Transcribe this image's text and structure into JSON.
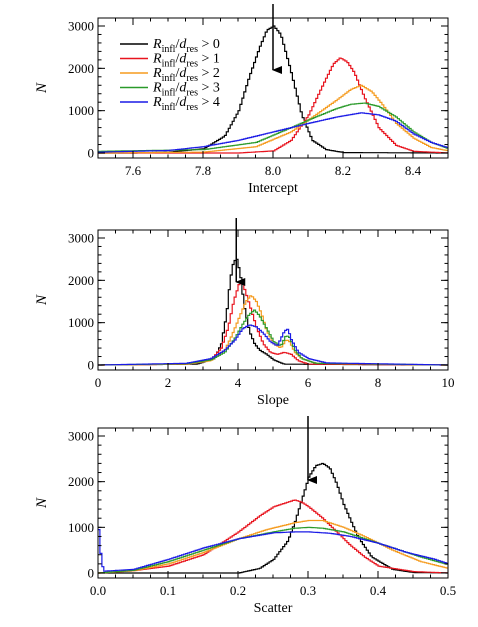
{
  "chart_data": [
    {
      "type": "line",
      "style": "histogram-step",
      "xlabel": "Intercept",
      "ylabel": "N",
      "xlim": [
        7.5,
        8.5
      ],
      "ylim": [
        0,
        3000
      ],
      "xticks": [
        "7.6",
        "7.8",
        "8.0",
        "8.2",
        "8.4"
      ],
      "yticks": [
        "0",
        "1000",
        "2000",
        "3000"
      ],
      "arrow_x": 8.0,
      "legend_position": "top-left",
      "legend": [
        {
          "R": "R",
          "infl": "infl",
          "d": "d",
          "res": "res",
          "rel": "> 0",
          "color": "#000000"
        },
        {
          "R": "R",
          "infl": "infl",
          "d": "d",
          "res": "res",
          "rel": "> 1",
          "color": "#e8141e"
        },
        {
          "R": "R",
          "infl": "infl",
          "d": "d",
          "res": "res",
          "rel": "> 2",
          "color": "#f59b1e"
        },
        {
          "R": "R",
          "infl": "infl",
          "d": "d",
          "res": "res",
          "rel": "> 3",
          "color": "#2a9a2a"
        },
        {
          "R": "R",
          "infl": "infl",
          "d": "d",
          "res": "res",
          "rel": "> 4",
          "color": "#1a1ae6"
        }
      ],
      "series": [
        {
          "color": "#000000",
          "x": [
            7.5,
            7.6,
            7.7,
            7.8,
            7.86,
            7.9,
            7.93,
            7.96,
            7.98,
            8.0,
            8.02,
            8.05,
            8.08,
            8.11,
            8.15,
            8.2,
            8.5
          ],
          "values": [
            0,
            0,
            20,
            100,
            400,
            1000,
            1800,
            2500,
            2900,
            3000,
            2800,
            1900,
            900,
            300,
            80,
            10,
            0
          ]
        },
        {
          "color": "#e8141e",
          "x": [
            7.5,
            7.9,
            8.0,
            8.05,
            8.1,
            8.14,
            8.17,
            8.19,
            8.21,
            8.23,
            8.26,
            8.3,
            8.35,
            8.4,
            8.5
          ],
          "values": [
            0,
            0,
            50,
            300,
            900,
            1600,
            2100,
            2250,
            2150,
            1900,
            1300,
            600,
            180,
            40,
            0
          ]
        },
        {
          "color": "#f59b1e",
          "x": [
            7.5,
            7.8,
            7.95,
            8.05,
            8.12,
            8.18,
            8.22,
            8.25,
            8.28,
            8.31,
            8.35,
            8.4,
            8.45,
            8.5
          ],
          "values": [
            0,
            20,
            150,
            500,
            900,
            1250,
            1500,
            1600,
            1450,
            1150,
            700,
            350,
            130,
            50
          ]
        },
        {
          "color": "#2a9a2a",
          "x": [
            7.5,
            7.8,
            7.95,
            8.05,
            8.12,
            8.18,
            8.22,
            8.26,
            8.3,
            8.35,
            8.4,
            8.45,
            8.5
          ],
          "values": [
            40,
            80,
            250,
            600,
            850,
            1050,
            1150,
            1180,
            1100,
            850,
            500,
            250,
            100
          ]
        },
        {
          "color": "#1a1ae6",
          "x": [
            7.5,
            7.7,
            7.8,
            7.9,
            8.0,
            8.1,
            8.18,
            8.25,
            8.3,
            8.35,
            8.4,
            8.45,
            8.5
          ],
          "values": [
            20,
            60,
            150,
            300,
            500,
            700,
            850,
            950,
            900,
            750,
            450,
            250,
            120
          ]
        }
      ]
    },
    {
      "type": "line",
      "style": "histogram-step",
      "xlabel": "Slope",
      "ylabel": "N",
      "xlim": [
        0,
        10
      ],
      "ylim": [
        0,
        3000
      ],
      "xticks": [
        "0",
        "2",
        "4",
        "6",
        "8",
        "10"
      ],
      "yticks": [
        "0",
        "1000",
        "2000",
        "3000"
      ],
      "arrow_x": 3.95,
      "series": [
        {
          "color": "#000000",
          "x": [
            0,
            2.8,
            3.3,
            3.5,
            3.65,
            3.75,
            3.85,
            3.95,
            4.05,
            4.15,
            4.3,
            4.45,
            4.6,
            4.8,
            5.0,
            5.3,
            10
          ],
          "values": [
            0,
            20,
            150,
            500,
            1200,
            2000,
            2450,
            2500,
            2100,
            1400,
            800,
            500,
            350,
            250,
            120,
            20,
            0
          ]
        },
        {
          "color": "#e8141e",
          "x": [
            0,
            2.5,
            3.2,
            3.5,
            3.7,
            3.85,
            4.0,
            4.1,
            4.2,
            4.35,
            4.5,
            4.7,
            4.9,
            5.1,
            5.3,
            5.5,
            5.7,
            6.0,
            10
          ],
          "values": [
            0,
            20,
            120,
            400,
            900,
            1500,
            1900,
            1950,
            1700,
            1300,
            900,
            500,
            300,
            250,
            300,
            250,
            100,
            20,
            0
          ]
        },
        {
          "color": "#f59b1e",
          "x": [
            0,
            2.5,
            3.2,
            3.6,
            3.8,
            4.0,
            4.2,
            4.35,
            4.5,
            4.65,
            4.8,
            5.0,
            5.2,
            5.35,
            5.45,
            5.6,
            5.8,
            6.2,
            10
          ],
          "values": [
            0,
            20,
            100,
            350,
            700,
            1100,
            1500,
            1650,
            1500,
            1200,
            800,
            500,
            400,
            600,
            550,
            300,
            150,
            40,
            0
          ]
        },
        {
          "color": "#2a9a2a",
          "x": [
            0,
            2.5,
            3.2,
            3.6,
            3.9,
            4.1,
            4.3,
            4.45,
            4.6,
            4.8,
            5.0,
            5.2,
            5.35,
            5.45,
            5.6,
            5.8,
            6.2,
            10
          ],
          "values": [
            0,
            30,
            120,
            300,
            650,
            950,
            1200,
            1300,
            1150,
            850,
            550,
            450,
            700,
            650,
            350,
            150,
            40,
            0
          ]
        },
        {
          "color": "#1a1ae6",
          "x": [
            0,
            2.5,
            3.2,
            3.6,
            3.9,
            4.1,
            4.3,
            4.5,
            4.7,
            4.9,
            5.1,
            5.3,
            5.4,
            5.5,
            5.7,
            6.0,
            6.5,
            10
          ],
          "values": [
            0,
            40,
            150,
            350,
            600,
            850,
            950,
            900,
            750,
            550,
            450,
            800,
            850,
            600,
            300,
            150,
            50,
            0
          ]
        }
      ]
    },
    {
      "type": "line",
      "style": "histogram-step",
      "xlabel": "Scatter",
      "ylabel": "N",
      "xlim": [
        0.0,
        0.5
      ],
      "ylim": [
        0,
        3000
      ],
      "xticks": [
        "0.0",
        "0.1",
        "0.2",
        "0.3",
        "0.4",
        "0.5"
      ],
      "yticks": [
        "0",
        "1000",
        "2000",
        "3000"
      ],
      "arrow_x": 0.3,
      "series": [
        {
          "color": "#000000",
          "x": [
            0,
            0.2,
            0.23,
            0.25,
            0.27,
            0.28,
            0.29,
            0.3,
            0.31,
            0.32,
            0.33,
            0.34,
            0.35,
            0.37,
            0.39,
            0.42,
            0.45,
            0.5
          ],
          "values": [
            0,
            0,
            100,
            300,
            700,
            1100,
            1600,
            2100,
            2350,
            2400,
            2300,
            1950,
            1500,
            800,
            350,
            80,
            10,
            0
          ]
        },
        {
          "color": "#e8141e",
          "x": [
            0.0,
            0.05,
            0.1,
            0.15,
            0.2,
            0.23,
            0.25,
            0.27,
            0.28,
            0.29,
            0.3,
            0.32,
            0.34,
            0.36,
            0.38,
            0.4,
            0.45,
            0.5
          ],
          "values": [
            0,
            50,
            150,
            400,
            900,
            1250,
            1450,
            1550,
            1600,
            1550,
            1450,
            1200,
            900,
            600,
            350,
            150,
            30,
            0
          ]
        },
        {
          "color": "#f59b1e",
          "x": [
            0.0,
            0.05,
            0.1,
            0.15,
            0.2,
            0.24,
            0.28,
            0.3,
            0.32,
            0.35,
            0.38,
            0.42,
            0.46,
            0.5
          ],
          "values": [
            0,
            50,
            200,
            450,
            750,
            950,
            1100,
            1150,
            1150,
            1000,
            800,
            500,
            250,
            100
          ]
        },
        {
          "color": "#2a9a2a",
          "x": [
            0.0,
            0.05,
            0.1,
            0.15,
            0.2,
            0.25,
            0.28,
            0.3,
            0.32,
            0.35,
            0.38,
            0.42,
            0.46,
            0.5
          ],
          "values": [
            0,
            60,
            250,
            500,
            750,
            900,
            980,
            1000,
            980,
            900,
            750,
            550,
            350,
            180
          ]
        },
        {
          "color": "#1a1ae6",
          "x": [
            0.0,
            0.004,
            0.008,
            0.05,
            0.1,
            0.15,
            0.2,
            0.25,
            0.28,
            0.3,
            0.33,
            0.36,
            0.4,
            0.44,
            0.48,
            0.5
          ],
          "values": [
            950,
            200,
            40,
            80,
            300,
            550,
            750,
            880,
            900,
            900,
            870,
            800,
            650,
            450,
            300,
            200
          ]
        }
      ]
    }
  ]
}
